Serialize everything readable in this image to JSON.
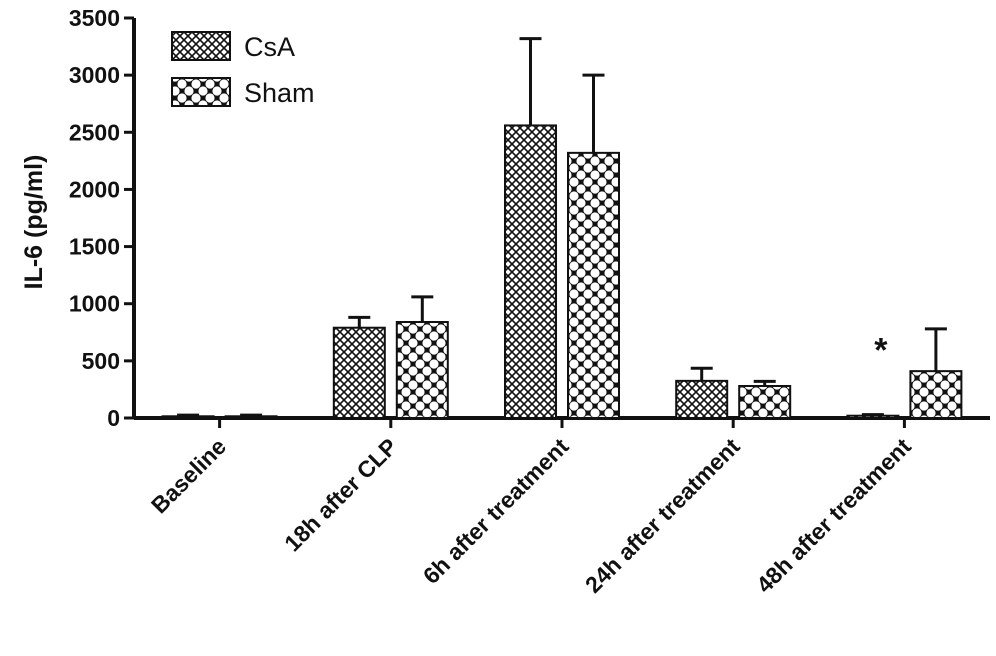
{
  "chart_data": {
    "type": "bar",
    "ylabel": "IL-6 (pg/ml)",
    "xlabel": "",
    "ylim": [
      0,
      3500
    ],
    "yticks": [
      0,
      500,
      1000,
      1500,
      2000,
      2500,
      3000,
      3500
    ],
    "ytick_labels": [
      "0",
      "500",
      "1000",
      "1500",
      "2000",
      "2500",
      "3000",
      "3500"
    ],
    "categories": [
      "Baseline",
      "18h after CLP",
      "6h after treatment",
      "24h after treatment",
      "48h after treatment"
    ],
    "series": [
      {
        "name": "CsA",
        "values": [
          15,
          790,
          2560,
          325,
          20
        ],
        "errors": [
          10,
          90,
          760,
          110,
          10
        ],
        "pattern": "dense"
      },
      {
        "name": "Sham",
        "values": [
          15,
          840,
          2320,
          280,
          410
        ],
        "errors": [
          10,
          220,
          680,
          40,
          370
        ],
        "pattern": "checker"
      }
    ],
    "annotations": [
      {
        "text": "*",
        "category": "48h after treatment",
        "series": "CsA"
      }
    ],
    "legend_position": "top-left",
    "grid": false
  }
}
